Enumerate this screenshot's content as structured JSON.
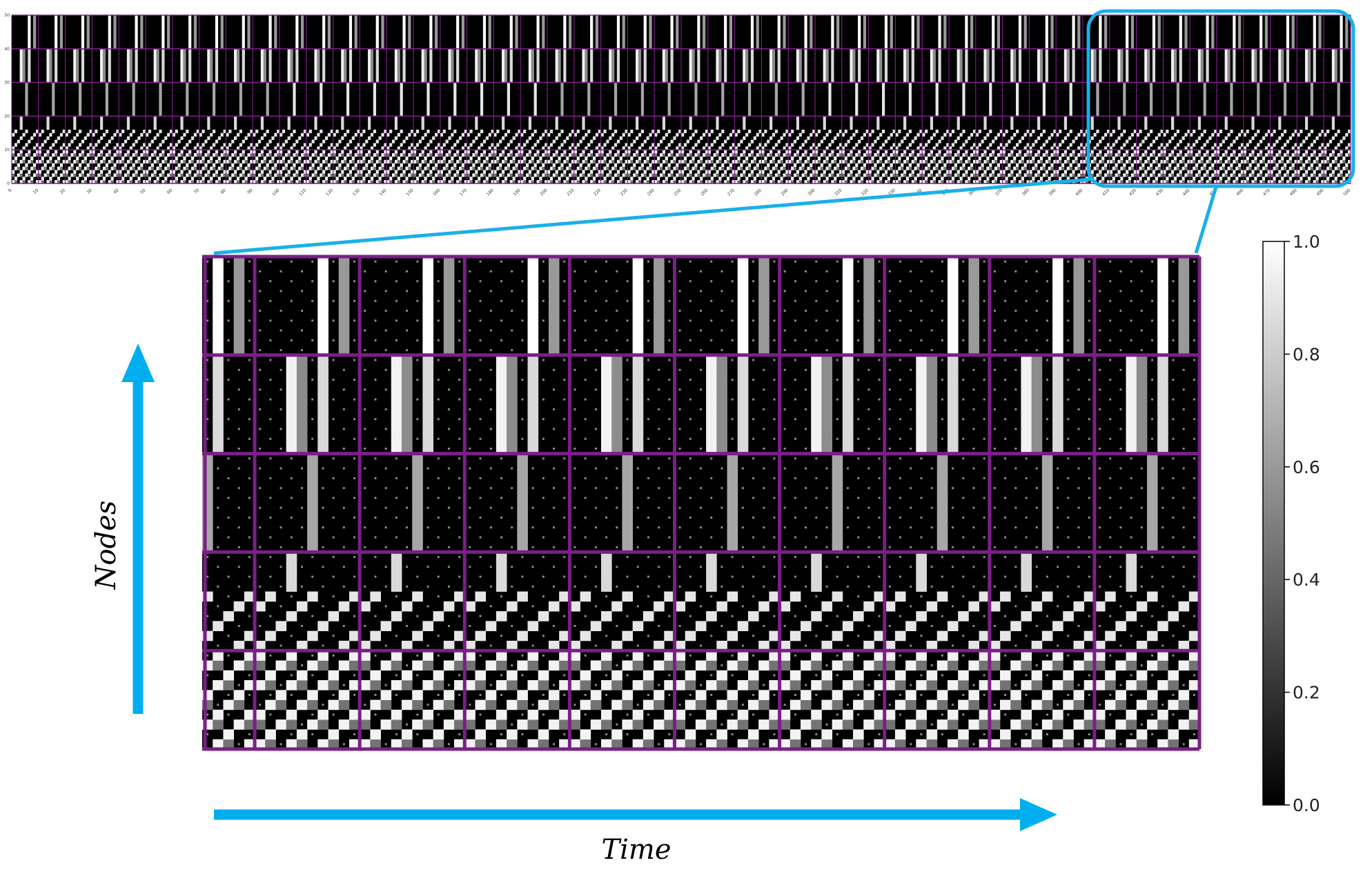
{
  "chart_data": [
    {
      "type": "heatmap",
      "panel": "overview",
      "x_range": [
        0,
        500
      ],
      "y_range": [
        0,
        50
      ],
      "x_ticks": [
        0,
        10,
        20,
        30,
        40,
        50,
        60,
        70,
        80,
        90,
        100,
        110,
        120,
        130,
        140,
        150,
        160,
        170,
        180,
        190,
        200,
        210,
        220,
        230,
        240,
        250,
        260,
        270,
        280,
        290,
        300,
        310,
        320,
        330,
        340,
        350,
        360,
        370,
        380,
        390,
        400,
        410,
        420,
        430,
        440,
        450,
        460,
        470,
        480,
        490,
        500
      ],
      "y_ticks": [
        0,
        10,
        20,
        30,
        40,
        50
      ],
      "node_groups": [
        [
          0,
          10
        ],
        [
          10,
          20
        ],
        [
          20,
          30
        ],
        [
          30,
          40
        ],
        [
          40,
          50
        ]
      ],
      "period": 10,
      "colormap": "gray",
      "value_range": [
        0,
        1
      ],
      "zoom_window": {
        "x": [
          405,
          500
        ],
        "y": [
          0,
          50
        ]
      }
    },
    {
      "type": "heatmap",
      "panel": "zoom",
      "x_range": [
        405,
        500
      ],
      "y_range": [
        0,
        50
      ],
      "xlabel": "Time",
      "ylabel": "Nodes",
      "colormap": "gray",
      "value_range": [
        0,
        1
      ]
    },
    {
      "type": "colorbar",
      "range": [
        0,
        1
      ],
      "ticks": [
        "0.0",
        "0.2",
        "0.4",
        "0.6",
        "0.8",
        "1.0"
      ]
    }
  ],
  "labels": {
    "time": "Time",
    "nodes": "Nodes"
  },
  "colors": {
    "arrow": "#00aeef",
    "highlight": "#1ab0ea",
    "grid": "#7a1f86",
    "background": "#000000"
  }
}
